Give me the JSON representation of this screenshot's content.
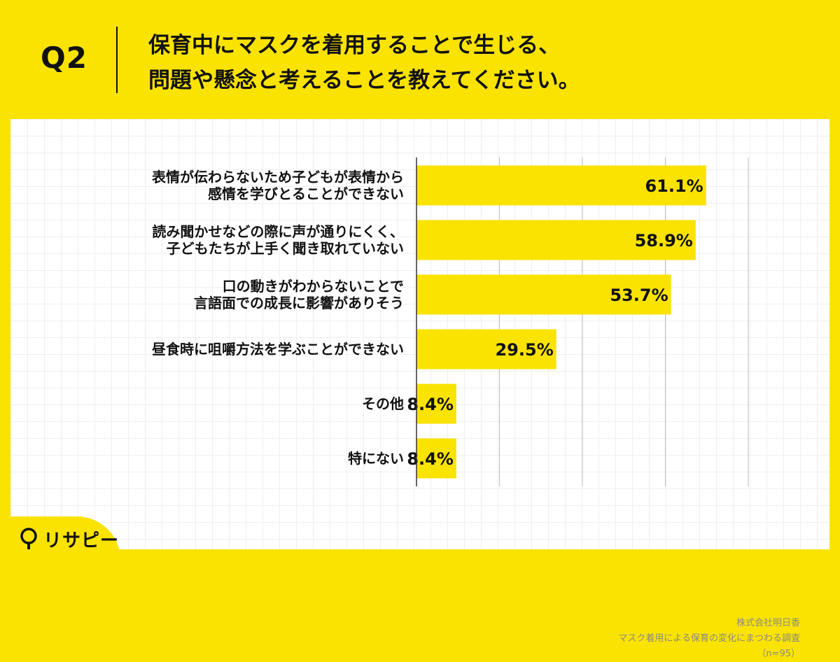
{
  "header": {
    "question_label": "Q2",
    "question_lines": [
      "保育中にマスクを着用することで生じる、",
      "問題や懸念と考えることを教えてください。"
    ]
  },
  "chart_data": {
    "type": "bar",
    "orientation": "horizontal",
    "categories": [
      [
        "表情が伝わらないため子どもが表情から",
        "感情を学びとることができない"
      ],
      [
        "読み聞かせなどの際に声が通りにくく、",
        "子どもたちが上手く聞き取れていない"
      ],
      [
        "口の動きがわからないことで",
        "言語面での成長に影響がありそう"
      ],
      [
        "昼食時に咀嚼方法を学ぶことができない"
      ],
      [
        "その他"
      ],
      [
        "特にない"
      ]
    ],
    "values": [
      61.1,
      58.9,
      53.7,
      29.5,
      8.4,
      8.4
    ],
    "value_labels": [
      "61.1%",
      "58.9%",
      "53.7%",
      "29.5%",
      "8.4%",
      "8.4%"
    ],
    "xlim": [
      0,
      70
    ],
    "grid_x_step": 17.5,
    "grid": true,
    "bar_color": "#FAE300",
    "grid_color": "#BDBDBD"
  },
  "credit": {
    "company": "株式会社明日香",
    "survey": "マスク着用による保育の変化にまつわる調査",
    "sample": "（n=95）"
  },
  "brand": {
    "name": "リサピー",
    "logo_icon": "lightbulb-icon"
  }
}
